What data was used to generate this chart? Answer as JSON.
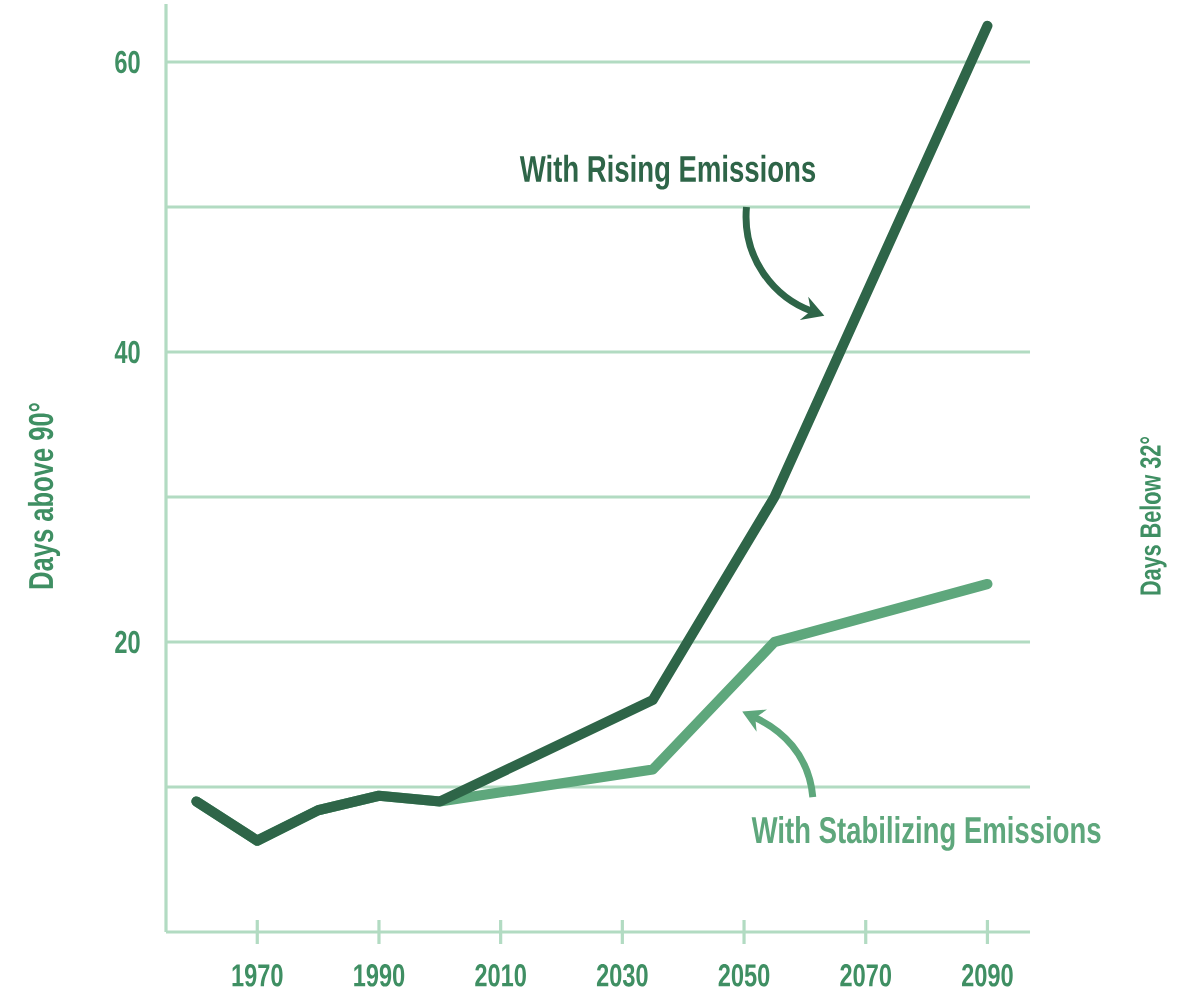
{
  "chart_data": {
    "type": "line",
    "ylabel": "Days above 90°",
    "annotations": [
      "Days Below 32°"
    ],
    "x": [
      1960,
      1970,
      1980,
      1990,
      2000,
      2035,
      2055,
      2090
    ],
    "series": [
      {
        "name": "With Rising Emissions",
        "color": "#2e6548",
        "values": [
          9,
          6.3,
          8.4,
          9.4,
          9,
          16,
          30,
          62.5
        ]
      },
      {
        "name": "With Stabilizing Emissions",
        "color": "#5ea77c",
        "values": [
          9,
          6.3,
          8.4,
          9.4,
          9,
          11.2,
          20,
          24
        ]
      }
    ],
    "xlim": [
      1955,
      2097
    ],
    "xticks": [
      1970,
      1990,
      2010,
      2030,
      2050,
      2070,
      2090
    ],
    "ylim": [
      0,
      64
    ],
    "yticks": [
      {
        "value": 10,
        "label": null
      },
      20,
      {
        "value": 30,
        "label": null
      },
      40,
      {
        "value": 50,
        "label": null
      },
      60
    ],
    "grid": "y"
  }
}
